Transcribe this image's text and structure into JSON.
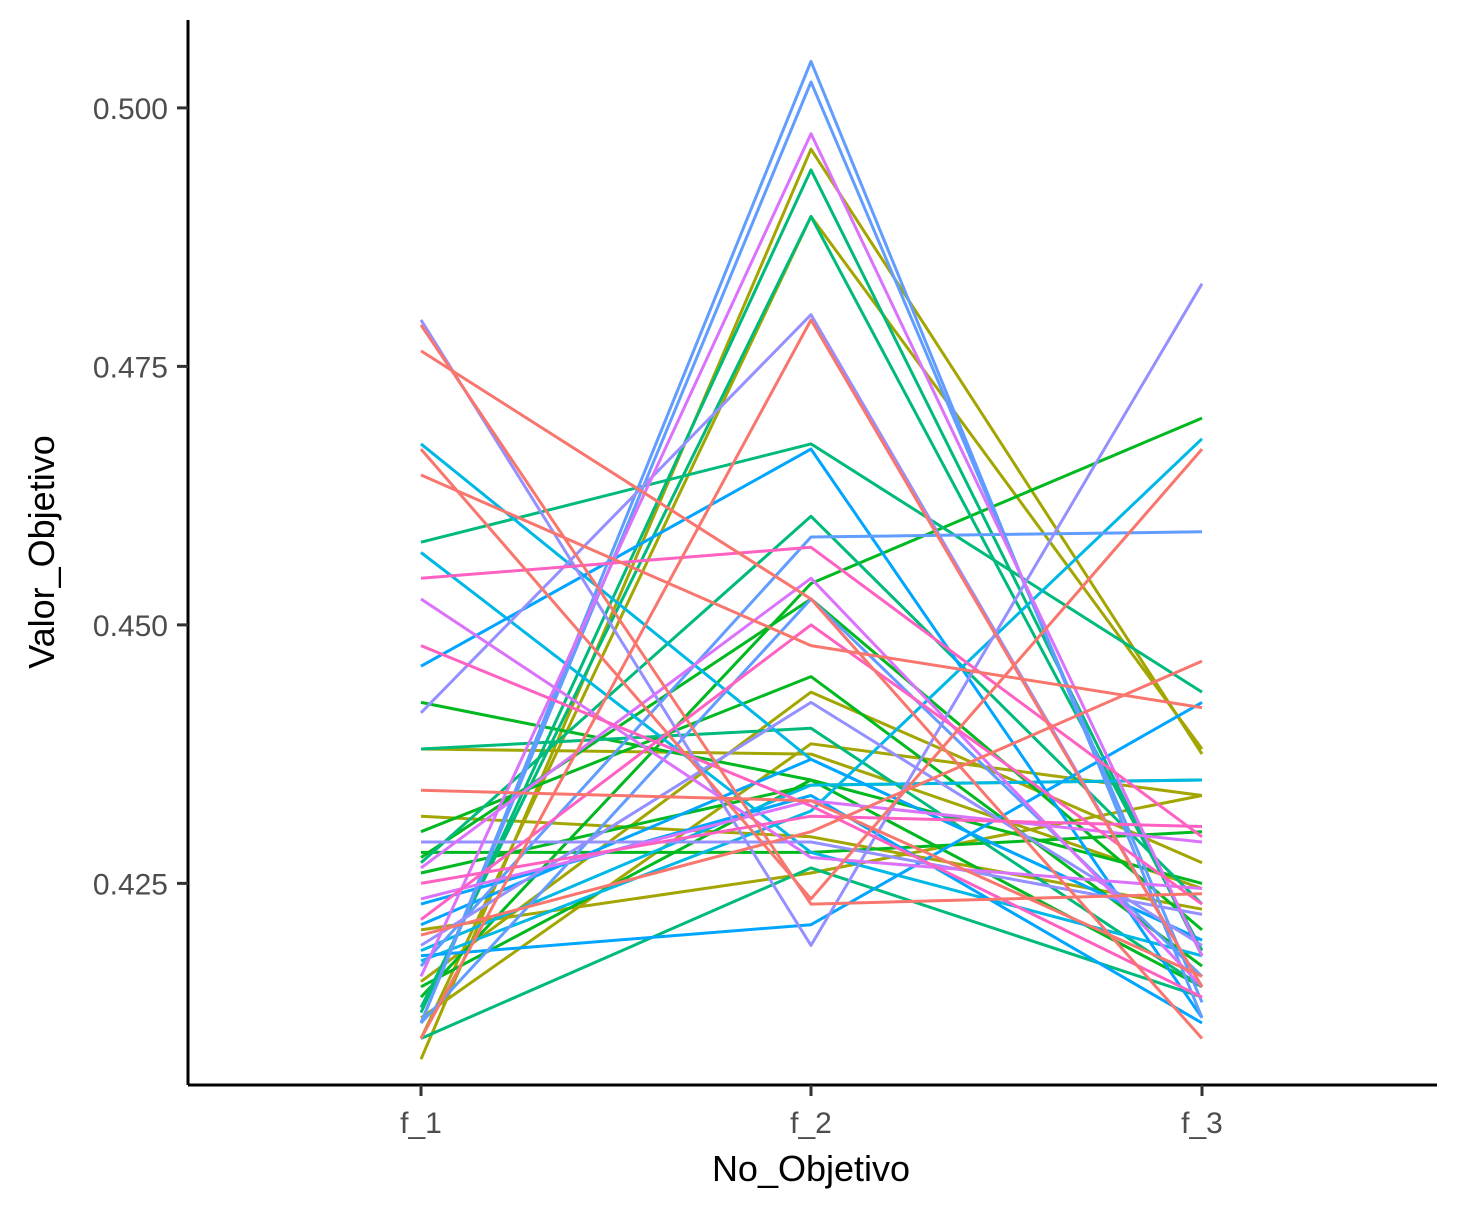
{
  "chart_data": {
    "type": "line",
    "title": "",
    "xlabel": "No_Objetivo",
    "ylabel": "Valor_Objetivo",
    "categories": [
      "f_1",
      "f_2",
      "f_3"
    ],
    "ylim": [
      0.4055,
      0.5085
    ],
    "yticks": [
      0.425,
      0.45,
      0.475,
      0.5
    ],
    "ytick_labels": [
      "0.425",
      "0.450",
      "0.475",
      "0.500"
    ],
    "grid": false,
    "legend": "none",
    "series": [
      {
        "values": [
          0.408,
          0.496,
          0.4375
        ],
        "color": "#A3A500"
      },
      {
        "values": [
          0.41,
          0.4895,
          0.438
        ],
        "color": "#A3A500"
      },
      {
        "values": [
          0.4315,
          0.4295,
          0.4225
        ],
        "color": "#A3A500"
      },
      {
        "values": [
          0.438,
          0.4375,
          0.4245
        ],
        "color": "#A3A500"
      },
      {
        "values": [
          0.412,
          0.4385,
          0.4335
        ],
        "color": "#A3A500"
      },
      {
        "values": [
          0.4155,
          0.4435,
          0.427
        ],
        "color": "#A3A500"
      },
      {
        "values": [
          0.4205,
          0.426,
          0.4335
        ],
        "color": "#A3A500"
      },
      {
        "values": [
          0.4425,
          0.435,
          0.425
        ],
        "color": "#00B81F"
      },
      {
        "values": [
          0.4275,
          0.4525,
          0.4205
        ],
        "color": "#00B81F"
      },
      {
        "values": [
          0.414,
          0.454,
          0.47
        ],
        "color": "#00B81F"
      },
      {
        "values": [
          0.43,
          0.445,
          0.417
        ],
        "color": "#00B81F"
      },
      {
        "values": [
          0.428,
          0.428,
          0.43
        ],
        "color": "#00B81F"
      },
      {
        "values": [
          0.415,
          0.435,
          0.415
        ],
        "color": "#00B81F"
      },
      {
        "values": [
          0.426,
          0.4345,
          0.435
        ],
        "color": "#00B81F"
      },
      {
        "values": [
          0.4125,
          0.494,
          0.418
        ],
        "color": "#00BA7C"
      },
      {
        "values": [
          0.413,
          0.4895,
          0.4185
        ],
        "color": "#00BA7C"
      },
      {
        "values": [
          0.458,
          0.4675,
          0.4435
        ],
        "color": "#00BA7C"
      },
      {
        "values": [
          0.438,
          0.44,
          0.415
        ],
        "color": "#00BA7C"
      },
      {
        "values": [
          0.427,
          0.4605,
          0.423
        ],
        "color": "#00BA7C"
      },
      {
        "values": [
          0.41,
          0.4265,
          0.414
        ],
        "color": "#00BA7C"
      },
      {
        "values": [
          0.4675,
          0.437,
          0.4195
        ],
        "color": "#00B8E5"
      },
      {
        "values": [
          0.457,
          0.428,
          0.418
        ],
        "color": "#00B8E5"
      },
      {
        "values": [
          0.4175,
          0.432,
          0.468
        ],
        "color": "#00B8E5"
      },
      {
        "values": [
          0.4185,
          0.4345,
          0.435
        ],
        "color": "#00B8E5"
      },
      {
        "values": [
          0.446,
          0.467,
          0.412
        ],
        "color": "#00A5FF"
      },
      {
        "values": [
          0.418,
          0.421,
          0.4425
        ],
        "color": "#00A5FF"
      },
      {
        "values": [
          0.421,
          0.437,
          0.4195
        ],
        "color": "#00A5FF"
      },
      {
        "values": [
          0.423,
          0.4335,
          0.4115
        ],
        "color": "#00A5FF"
      },
      {
        "values": [
          0.4115,
          0.5045,
          0.412
        ],
        "color": "#619CFF"
      },
      {
        "values": [
          0.4115,
          0.5025,
          0.4135
        ],
        "color": "#619CFF"
      },
      {
        "values": [
          0.417,
          0.4585,
          0.459
        ],
        "color": "#619CFF"
      },
      {
        "values": [
          0.4115,
          0.4525,
          0.416
        ],
        "color": "#619CFF"
      },
      {
        "values": [
          0.4795,
          0.419,
          0.483
        ],
        "color": "#9590FF"
      },
      {
        "values": [
          0.4415,
          0.48,
          0.415
        ],
        "color": "#9590FF"
      },
      {
        "values": [
          0.419,
          0.4425,
          0.419
        ],
        "color": "#9590FF"
      },
      {
        "values": [
          0.429,
          0.429,
          0.422
        ],
        "color": "#9590FF"
      },
      {
        "values": [
          0.416,
          0.4975,
          0.418
        ],
        "color": "#DB72FB"
      },
      {
        "values": [
          0.4265,
          0.4545,
          0.415
        ],
        "color": "#DB72FB"
      },
      {
        "values": [
          0.4525,
          0.4275,
          0.4245
        ],
        "color": "#DB72FB"
      },
      {
        "values": [
          0.4235,
          0.433,
          0.429
        ],
        "color": "#DB72FB"
      },
      {
        "values": [
          0.4545,
          0.4575,
          0.4295
        ],
        "color": "#FF61C3"
      },
      {
        "values": [
          0.448,
          0.4325,
          0.414
        ],
        "color": "#FF61C3"
      },
      {
        "values": [
          0.425,
          0.4315,
          0.4305
        ],
        "color": "#FF61C3"
      },
      {
        "values": [
          0.4215,
          0.45,
          0.423
        ],
        "color": "#FF61C3"
      },
      {
        "values": [
          0.479,
          0.423,
          0.424
        ],
        "color": "#F8766D"
      },
      {
        "values": [
          0.4765,
          0.4525,
          0.41
        ],
        "color": "#F8766D"
      },
      {
        "values": [
          0.467,
          0.4235,
          0.467
        ],
        "color": "#F8766D"
      },
      {
        "values": [
          0.4645,
          0.448,
          0.442
        ],
        "color": "#F8766D"
      },
      {
        "values": [
          0.41,
          0.4795,
          0.415
        ],
        "color": "#F8766D"
      },
      {
        "values": [
          0.434,
          0.433,
          0.416
        ],
        "color": "#F8766D"
      },
      {
        "values": [
          0.42,
          0.43,
          0.4465
        ],
        "color": "#F8766D"
      }
    ]
  }
}
